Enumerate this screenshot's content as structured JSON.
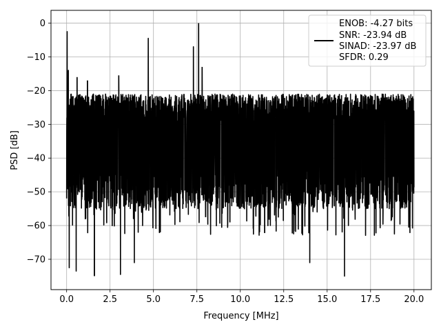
{
  "chart_data": {
    "type": "line",
    "title": "",
    "xlabel": "Frequency [MHz]",
    "ylabel": "PSD [dB]",
    "xlim": [
      -0.9,
      21.0
    ],
    "ylim": [
      -79.0,
      3.8
    ],
    "x_ticks": [
      0.0,
      2.5,
      5.0,
      7.5,
      10.0,
      12.5,
      15.0,
      17.5,
      20.0
    ],
    "x_tick_labels": [
      "0.0",
      "2.5",
      "5.0",
      "7.5",
      "10.0",
      "12.5",
      "15.0",
      "17.5",
      "20.0"
    ],
    "y_ticks": [
      0,
      -10,
      -20,
      -30,
      -40,
      -50,
      -60,
      -70
    ],
    "y_tick_labels": [
      "0",
      "−10",
      "−20",
      "−30",
      "−40",
      "−50",
      "−60",
      "−70"
    ],
    "grid": true,
    "line_color": "#000000",
    "series": [
      {
        "x_range": [
          0.0,
          20.0
        ],
        "points": 3000,
        "noise_floor_range": [
          -55,
          -21
        ],
        "spurs": [
          {
            "x": 0.03,
            "y": -2.5
          },
          {
            "x": 0.1,
            "y": -14.0
          },
          {
            "x": 0.6,
            "y": -16.0
          },
          {
            "x": 1.2,
            "y": -17.0
          },
          {
            "x": 1.6,
            "y": -7.5
          },
          {
            "x": 3.0,
            "y": -15.5
          },
          {
            "x": 4.7,
            "y": -4.5
          },
          {
            "x": 7.3,
            "y": -7.0
          },
          {
            "x": 7.6,
            "y": 0.0
          },
          {
            "x": 7.8,
            "y": -13.0
          }
        ],
        "dips": [
          {
            "x": 0.15,
            "y": -72.5
          },
          {
            "x": 0.55,
            "y": -73.5
          },
          {
            "x": 1.6,
            "y": -75.0
          },
          {
            "x": 3.1,
            "y": -74.5
          },
          {
            "x": 3.9,
            "y": -71.0
          },
          {
            "x": 14.0,
            "y": -71.0
          },
          {
            "x": 16.0,
            "y": -75.0
          }
        ]
      }
    ],
    "legend": {
      "position": "top-right",
      "entries": [
        "ENOB: -4.27 bits",
        "SNR: -23.94 dB",
        "SINAD: -23.97 dB",
        "SFDR: 0.29"
      ]
    }
  }
}
